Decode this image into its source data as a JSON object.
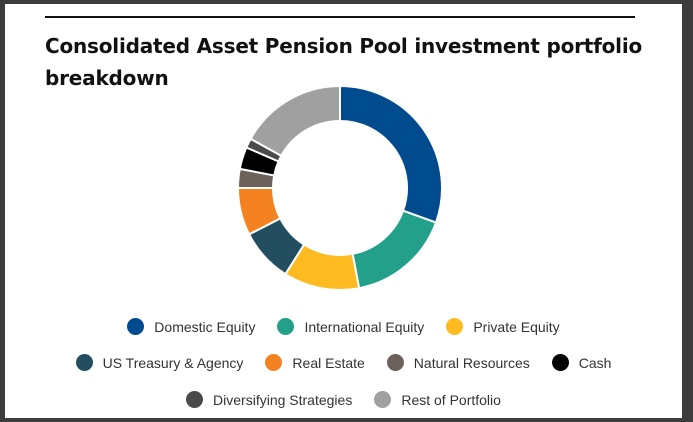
{
  "chart_data": {
    "type": "pie",
    "style": "donut",
    "title": "Consolidated Asset Pension Pool investment portfolio breakdown",
    "legend_position": "bottom",
    "slices": [
      {
        "label": "Domestic Equity",
        "value": 30.5,
        "color": "#004b8d"
      },
      {
        "label": "International Equity",
        "value": 16.5,
        "color": "#23a08a"
      },
      {
        "label": "Private Equity",
        "value": 12.0,
        "color": "#fdba21"
      },
      {
        "label": "US Treasury & Agency",
        "value": 8.5,
        "color": "#234e60"
      },
      {
        "label": "Real Estate",
        "value": 7.5,
        "color": "#f58220"
      },
      {
        "label": "Natural Resources",
        "value": 3.0,
        "color": "#6c625b"
      },
      {
        "label": "Cash",
        "value": 3.5,
        "color": "#000000"
      },
      {
        "label": "Diversifying Strategies",
        "value": 1.5,
        "color": "#4a4a4a"
      },
      {
        "label": "Rest of Portfolio",
        "value": 17.0,
        "color": "#a0a0a0"
      }
    ],
    "legend_rows": [
      [
        0,
        1,
        2
      ],
      [
        3,
        4,
        5,
        6
      ],
      [
        7,
        8
      ]
    ]
  }
}
